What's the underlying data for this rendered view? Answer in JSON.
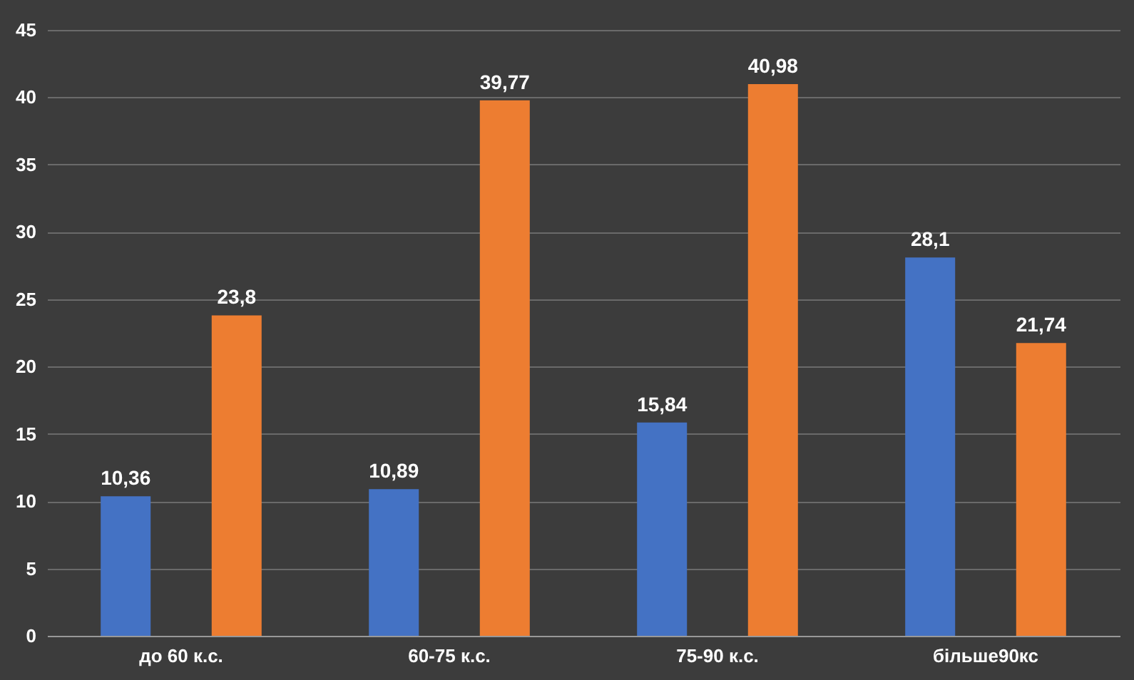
{
  "chart_data": {
    "type": "bar",
    "categories": [
      "до 60 к.с.",
      "60-75 к.с.",
      "75-90 к.с.",
      "більше90кс"
    ],
    "series": [
      {
        "color": "#4472c4",
        "values": [
          10.36,
          10.89,
          15.84,
          28.1
        ],
        "value_labels": [
          "10,36",
          "10,89",
          "15,84",
          "28,1"
        ]
      },
      {
        "color": "#ed7d31",
        "values": [
          23.8,
          39.77,
          40.98,
          21.74
        ],
        "value_labels": [
          "23,8",
          "39,77",
          "40,98",
          "21,74"
        ]
      }
    ],
    "ylim": [
      0,
      45
    ],
    "yticks": [
      0,
      5,
      10,
      15,
      20,
      25,
      30,
      35,
      40,
      45
    ],
    "grid": "y"
  }
}
